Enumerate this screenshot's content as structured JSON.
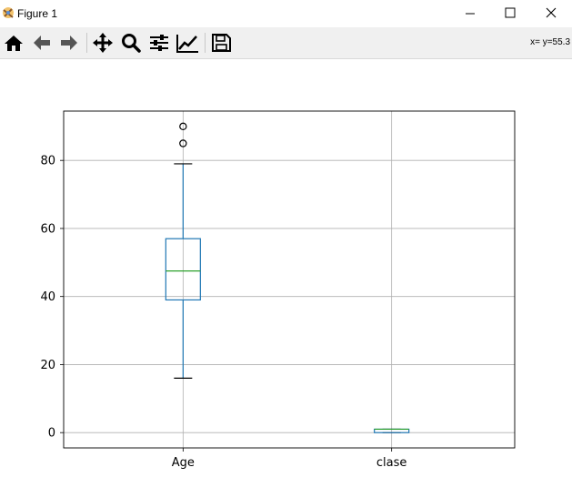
{
  "window": {
    "title": "Figure 1",
    "controls": {
      "minimize": "minimize",
      "maximize": "maximize",
      "close": "close"
    }
  },
  "toolbar": {
    "buttons": [
      {
        "name": "home",
        "icon": "home-icon"
      },
      {
        "name": "back",
        "icon": "arrow-left-icon"
      },
      {
        "name": "forward",
        "icon": "arrow-right-icon"
      },
      {
        "name": "pan",
        "icon": "move-icon"
      },
      {
        "name": "zoom",
        "icon": "magnifier-icon"
      },
      {
        "name": "subplots",
        "icon": "sliders-icon"
      },
      {
        "name": "edit-axes",
        "icon": "line-chart-icon"
      },
      {
        "name": "save",
        "icon": "floppy-disk-icon"
      }
    ],
    "coords": "x= y=55.3"
  },
  "chart_data": {
    "type": "boxplot",
    "categories": [
      "Age",
      "clase"
    ],
    "boxes": [
      {
        "label": "Age",
        "whisker_low": 16,
        "q1": 39,
        "median": 47.5,
        "q3": 57,
        "whisker_high": 79,
        "outliers": [
          85,
          90
        ]
      },
      {
        "label": "clase",
        "whisker_low": 0,
        "q1": 0,
        "median": 1,
        "q3": 1,
        "whisker_high": 1,
        "outliers": []
      }
    ],
    "ylim": [
      -4.5,
      94.5
    ],
    "yticks": [
      0,
      20,
      40,
      60,
      80
    ],
    "grid": true,
    "colors": {
      "box": "#1f77b4",
      "median": "#2ca02c",
      "whisker": "#1f77b4",
      "cap": "#000000",
      "grid": "#b0b0b0"
    }
  }
}
